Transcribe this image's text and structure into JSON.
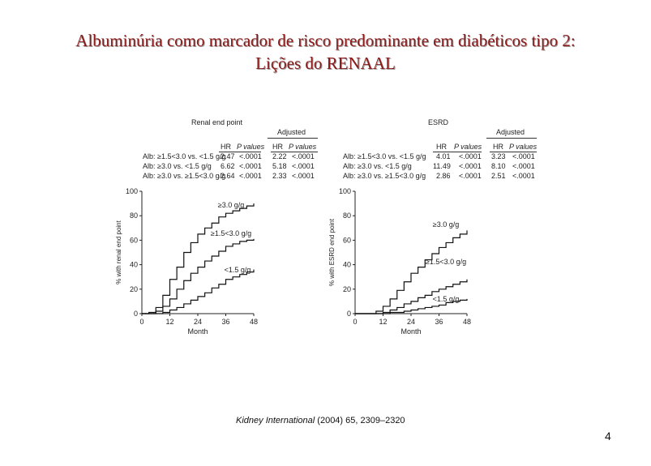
{
  "slide": {
    "title_line1": "Albuminúria como marcador de risco predominante em diabéticos tipo 2:",
    "title_line2": "Lições do RENAAL",
    "citation_journal": "Kidney International",
    "citation_rest": " (2004) 65, 2309–2320",
    "page_number": "4"
  },
  "chart_data": [
    {
      "type": "line",
      "title": "Renal end point",
      "xlabel": "Month",
      "ylabel": "% with renal end point",
      "xlim": [
        0,
        48
      ],
      "ylim": [
        0,
        100
      ],
      "x_ticks": [
        "0",
        "12",
        "24",
        "36",
        "48"
      ],
      "y_ticks": [
        "0",
        "20",
        "40",
        "60",
        "80",
        "100"
      ],
      "table": {
        "adjusted_label": "Adjusted",
        "headers": [
          "HR",
          "P values",
          "HR",
          "P values"
        ],
        "rows": [
          {
            "label": "Alb: ≥1.5<3.0 vs. <1.5 g/g",
            "hr": "2.47",
            "p": "<.0001",
            "adj_hr": "2.22",
            "adj_p": "<.0001"
          },
          {
            "label": "Alb: ≥3.0 vs. <1.5 g/g",
            "hr": "6.62",
            "p": "<.0001",
            "adj_hr": "5.18",
            "adj_p": "<.0001"
          },
          {
            "label": "Alb: ≥3.0 vs. ≥1.5<3.0 g/g",
            "hr": "2.64",
            "p": "<.0001",
            "adj_hr": "2.33",
            "adj_p": "<.0001"
          }
        ]
      },
      "series": [
        {
          "name": "≥3.0 g/g",
          "x": [
            0,
            3,
            6,
            9,
            12,
            15,
            18,
            21,
            24,
            27,
            30,
            33,
            36,
            39,
            42,
            45,
            48
          ],
          "y": [
            0,
            1,
            5,
            15,
            28,
            38,
            50,
            58,
            65,
            70,
            74,
            79,
            82,
            84,
            86,
            88,
            90
          ]
        },
        {
          "name": "≥1.5<3.0 g/g",
          "x": [
            0,
            3,
            6,
            9,
            12,
            15,
            18,
            21,
            24,
            27,
            30,
            33,
            36,
            39,
            42,
            45,
            48
          ],
          "y": [
            0,
            0,
            2,
            6,
            12,
            20,
            27,
            33,
            38,
            43,
            47,
            51,
            55,
            57,
            59,
            60,
            61
          ]
        },
        {
          "name": "<1.5 g/g",
          "x": [
            0,
            3,
            6,
            9,
            12,
            15,
            18,
            21,
            24,
            27,
            30,
            33,
            36,
            39,
            42,
            45,
            48
          ],
          "y": [
            0,
            0,
            0,
            1,
            3,
            5,
            8,
            11,
            14,
            17,
            21,
            24,
            28,
            30,
            32,
            34,
            36
          ]
        }
      ]
    },
    {
      "type": "line",
      "title": "ESRD",
      "xlabel": "Month",
      "ylabel": "% with ESRD end point",
      "xlim": [
        0,
        48
      ],
      "ylim": [
        0,
        100
      ],
      "x_ticks": [
        "0",
        "12",
        "24",
        "36",
        "48"
      ],
      "y_ticks": [
        "0",
        "20",
        "40",
        "60",
        "80",
        "100"
      ],
      "table": {
        "adjusted_label": "Adjusted",
        "headers": [
          "HR",
          "P values",
          "HR",
          "P values"
        ],
        "rows": [
          {
            "label": "Alb: ≥1.5<3.0 vs. <1.5 g/g",
            "hr": "4.01",
            "p": "<.0001",
            "adj_hr": "3.23",
            "adj_p": "<.0001"
          },
          {
            "label": "Alb: ≥3.0 vs. <1.5 g/g",
            "hr": "11.49",
            "p": "<.0001",
            "adj_hr": "8.10",
            "adj_p": "<.0001"
          },
          {
            "label": "Alb: ≥3.0 vs. ≥1.5<3.0 g/g",
            "hr": "2.86",
            "p": "<.0001",
            "adj_hr": "2.51",
            "adj_p": "<.0001"
          }
        ]
      },
      "series": [
        {
          "name": "≥3.0 g/g",
          "x": [
            0,
            3,
            6,
            9,
            12,
            15,
            18,
            21,
            24,
            27,
            30,
            33,
            36,
            39,
            42,
            45,
            48
          ],
          "y": [
            0,
            0,
            0,
            2,
            6,
            12,
            19,
            26,
            33,
            38,
            44,
            49,
            54,
            58,
            62,
            65,
            68
          ]
        },
        {
          "name": "≥1.5<3.0 g/g",
          "x": [
            0,
            3,
            6,
            9,
            12,
            15,
            18,
            21,
            24,
            27,
            30,
            33,
            36,
            39,
            42,
            45,
            48
          ],
          "y": [
            0,
            0,
            0,
            0,
            1,
            3,
            5,
            8,
            10,
            13,
            15,
            18,
            20,
            22,
            24,
            26,
            28
          ]
        },
        {
          "name": "<1.5 g/g",
          "x": [
            0,
            3,
            6,
            9,
            12,
            15,
            18,
            21,
            24,
            27,
            30,
            33,
            36,
            39,
            42,
            45,
            48
          ],
          "y": [
            0,
            0,
            0,
            0,
            0,
            1,
            1,
            2,
            3,
            4,
            5,
            6,
            7,
            9,
            10,
            11,
            12
          ]
        }
      ]
    }
  ]
}
